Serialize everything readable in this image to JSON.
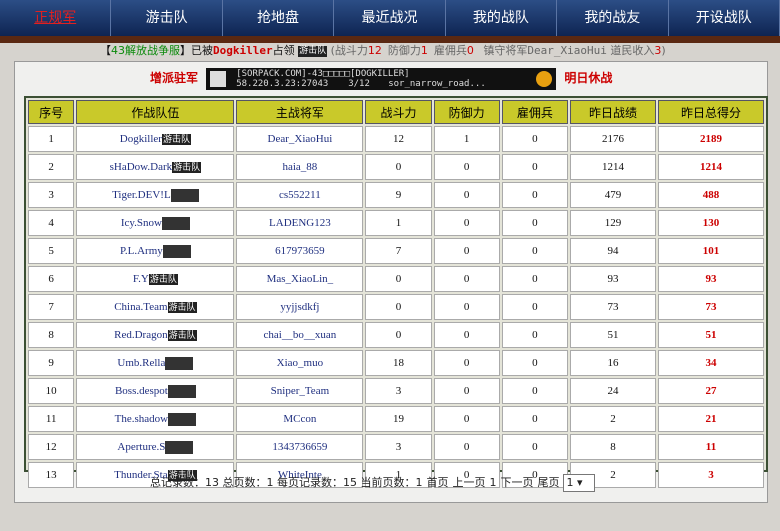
{
  "nav": [
    "正规军",
    "游击队",
    "抢地盘",
    "最近战况",
    "我的战队",
    "我的战友",
    "开设战队"
  ],
  "info": {
    "open": "【",
    "server": "43解放战争服",
    "close": "】",
    "prefix": "已被",
    "owner": "Dogkiller",
    "suffix": "占领",
    "badge": "游击队",
    "stats_open": "(",
    "stats": [
      {
        "label": "战斗力",
        "value": "12"
      },
      {
        "label": "防御力",
        "value": "1"
      },
      {
        "label": "雇佣兵",
        "value": "0"
      }
    ],
    "general_label": "镇守将军",
    "general": "Dear_XiaoHui",
    "income_label": "道民收入",
    "income": "3",
    "stats_close": ")"
  },
  "actions": {
    "left": "增派驻军",
    "right": "明日休战"
  },
  "banner": {
    "name": "[SORPACK.COM]-43□□□□□[DOGKILLER]",
    "address": "58.220.3.23:27043",
    "players": "3/12",
    "map": "sor_narrow_road..."
  },
  "table": {
    "headers": [
      "序号",
      "作战队伍",
      "主战将军",
      "战斗力",
      "防御力",
      "雇佣兵",
      "昨日战绩",
      "昨日总得分"
    ],
    "rows": [
      [
        1,
        "Dogkiller",
        "Dear_XiaoHui",
        12,
        1,
        0,
        2176,
        2189
      ],
      [
        2,
        "sHaDow.Dark",
        "haia_88",
        0,
        0,
        0,
        1214,
        1214
      ],
      [
        3,
        "Tiger.DEV!L",
        "cs552211",
        9,
        0,
        0,
        479,
        488
      ],
      [
        4,
        "Icy.Snow",
        "LADENG123",
        1,
        0,
        0,
        129,
        130
      ],
      [
        5,
        "P.L.Army",
        "617973659",
        7,
        0,
        0,
        94,
        101
      ],
      [
        6,
        "F.Y",
        "Mas_XiaoLin_",
        0,
        0,
        0,
        93,
        93
      ],
      [
        7,
        "China.Team",
        "yyjjsdkfj",
        0,
        0,
        0,
        73,
        73
      ],
      [
        8,
        "Red.Dragon",
        "chai__bo__xuan",
        0,
        0,
        0,
        51,
        51
      ],
      [
        9,
        "Umb.Rella",
        "Xiao_muo",
        18,
        0,
        0,
        16,
        34
      ],
      [
        10,
        "Boss.despot",
        "Sniper_Team",
        3,
        0,
        0,
        24,
        27
      ],
      [
        11,
        "The.shadow",
        "MCcon",
        19,
        0,
        0,
        2,
        21
      ],
      [
        12,
        "Aperture.S",
        "1343736659",
        3,
        0,
        0,
        8,
        11
      ],
      [
        13,
        "Thunder.Sta",
        "WhiteInte",
        1,
        0,
        0,
        2,
        3
      ]
    ],
    "badges": [
      "游击队",
      "游击队",
      null,
      null,
      null,
      "游击队",
      "游击队",
      "游击队",
      null,
      null,
      null,
      null,
      "游击队"
    ]
  },
  "footer": {
    "summary": "总记录数：13 总页数：1 每页记录数：15 当前页数：1",
    "links": [
      "首页",
      "上一页",
      "1",
      "下一页",
      "尾页"
    ],
    "select": "1"
  }
}
